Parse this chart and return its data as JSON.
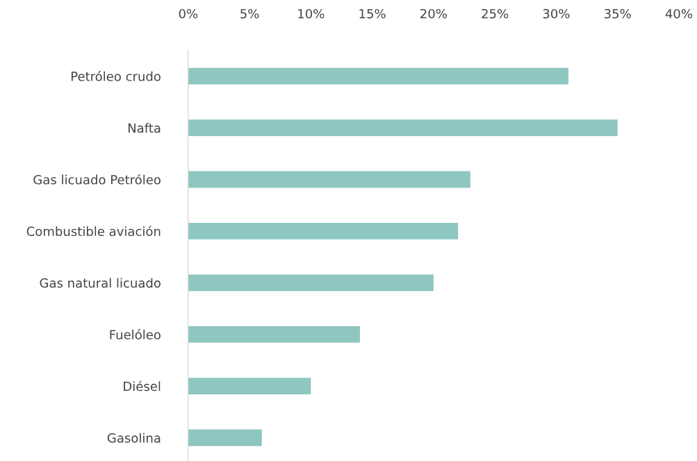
{
  "chart_data": {
    "type": "bar",
    "orientation": "horizontal",
    "categories": [
      "Petróleo crudo",
      "Nafta",
      "Gas licuado Petróleo",
      "Combustible aviación",
      "Gas natural licuado",
      "Fuelóleo",
      "Diésel",
      "Gasolina"
    ],
    "values": [
      31,
      35,
      23,
      22,
      20,
      14,
      10,
      6
    ],
    "color": "#8ec6c0",
    "xlim": [
      0,
      40
    ],
    "xticks": [
      {
        "value": 0,
        "label": "0%"
      },
      {
        "value": 5,
        "label": "5%"
      },
      {
        "value": 10,
        "label": "10%"
      },
      {
        "value": 15,
        "label": "15%"
      },
      {
        "value": 20,
        "label": "20%"
      },
      {
        "value": 25,
        "label": "25%"
      },
      {
        "value": 30,
        "label": "30%"
      },
      {
        "value": 35,
        "label": "35%"
      },
      {
        "value": 40,
        "label": "40%"
      }
    ],
    "grid": false,
    "legend": false
  }
}
